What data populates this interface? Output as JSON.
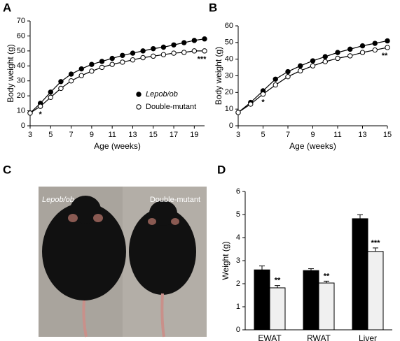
{
  "panels": [
    "A",
    "B",
    "C",
    "D"
  ],
  "photo_labels": [
    "Lepob/ob",
    "Double-mutant"
  ],
  "chart_data": [
    {
      "type": "line",
      "x_label": "Age (weeks)",
      "y_label": "Body weight (g)",
      "x": [
        3,
        4,
        5,
        6,
        7,
        8,
        9,
        10,
        11,
        12,
        13,
        14,
        15,
        16,
        17,
        18,
        19,
        20
      ],
      "series": [
        {
          "name": "Lepob/ob",
          "color": "#000000",
          "fill": "#000000",
          "values": [
            8.5,
            15,
            22.5,
            29.5,
            34.5,
            38,
            41,
            43,
            45,
            47,
            48.5,
            50,
            51.5,
            52.5,
            54,
            55.5,
            57,
            58
          ]
        },
        {
          "name": "Double-mutant",
          "color": "#000000",
          "fill": "#ffffff",
          "values": [
            8.5,
            13,
            19,
            25,
            30,
            33.5,
            36.5,
            39,
            41,
            42.5,
            44,
            45.5,
            46.5,
            47.5,
            48.5,
            49,
            50,
            50
          ]
        }
      ],
      "xlim": [
        3,
        20
      ],
      "xticks": [
        3,
        5,
        7,
        9,
        11,
        13,
        15,
        17,
        19
      ],
      "ylim": [
        0,
        70
      ],
      "yticks": [
        0,
        10,
        20,
        30,
        40,
        50,
        60,
        70
      ],
      "legend": "lower-right",
      "annotations": [
        {
          "text": "*",
          "x": 4
        },
        {
          "text": "***",
          "x": 20
        }
      ]
    },
    {
      "type": "line",
      "x_label": "Age (weeks)",
      "y_label": "Body weight (g)",
      "x": [
        3,
        4,
        5,
        6,
        7,
        8,
        9,
        10,
        11,
        12,
        13,
        14,
        15
      ],
      "series": [
        {
          "color": "#000000",
          "fill": "#000000",
          "values": [
            8,
            14,
            21,
            28,
            32.5,
            36,
            39,
            41.5,
            44,
            46,
            48,
            49.5,
            51
          ]
        },
        {
          "color": "#000000",
          "fill": "#ffffff",
          "values": [
            8,
            13,
            19,
            24.5,
            29.5,
            33,
            36,
            38.5,
            40.5,
            42,
            44,
            45.5,
            47
          ]
        }
      ],
      "xlim": [
        3,
        15
      ],
      "xticks": [
        3,
        5,
        7,
        9,
        11,
        13,
        15
      ],
      "ylim": [
        0,
        60
      ],
      "yticks": [
        0,
        10,
        20,
        30,
        40,
        50,
        60
      ],
      "annotations": [
        {
          "text": "*",
          "x": 5
        },
        {
          "text": "**",
          "x": 15
        }
      ]
    },
    {
      "type": "bar",
      "y_label": "Weight (g)",
      "categories": [
        "EWAT",
        "RWAT",
        "Liver"
      ],
      "series": [
        {
          "color": "#000000",
          "values": [
            2.6,
            2.57,
            4.82
          ],
          "errors": [
            0.17,
            0.08,
            0.17
          ]
        },
        {
          "color": "#f0f0f0",
          "values": [
            1.82,
            2.03,
            3.4
          ],
          "errors": [
            0.1,
            0.08,
            0.15
          ]
        }
      ],
      "ylim": [
        0,
        6
      ],
      "yticks": [
        0,
        1,
        2,
        3,
        4,
        5,
        6
      ],
      "annotations": [
        "**",
        "**",
        "***"
      ]
    }
  ]
}
